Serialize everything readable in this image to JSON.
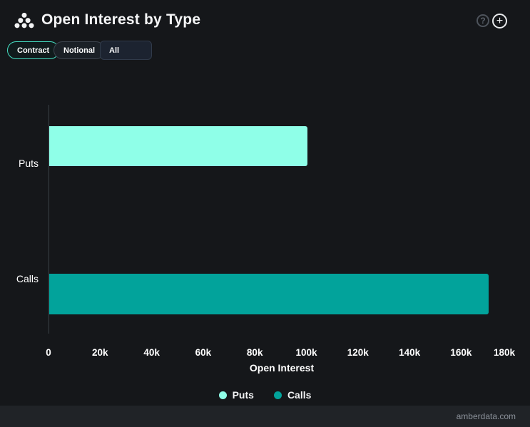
{
  "header": {
    "title": "Open Interest by Type",
    "help_glyph": "?",
    "add_glyph": "+"
  },
  "toolbar": {
    "contract_label": "Contract",
    "notional_label": "Notional",
    "filter_value": "All"
  },
  "chart_data": {
    "type": "bar",
    "orientation": "horizontal",
    "title": "Open Interest by Type",
    "xlabel": "Open Interest",
    "ylabel": "",
    "categories": [
      "Puts",
      "Calls"
    ],
    "series": [
      {
        "name": "Puts",
        "value": 100000,
        "color": "#8FFFE8"
      },
      {
        "name": "Calls",
        "value": 170500,
        "color": "#02A39B"
      }
    ],
    "x_ticks": [
      "0",
      "20k",
      "40k",
      "60k",
      "80k",
      "100k",
      "120k",
      "140k",
      "160k",
      "180k"
    ],
    "x_tick_values": [
      0,
      20000,
      40000,
      60000,
      80000,
      100000,
      120000,
      140000,
      160000,
      180000
    ],
    "xlim": [
      0,
      184000
    ],
    "grid": false,
    "legend_position": "bottom-center"
  },
  "colors": {
    "background": "#15171a",
    "accent": "#45E0C3",
    "axis_line": "#3a4046",
    "puts": "#8FFFE8",
    "calls": "#02A39B"
  },
  "footer": {
    "watermark": "amberdata.com"
  }
}
